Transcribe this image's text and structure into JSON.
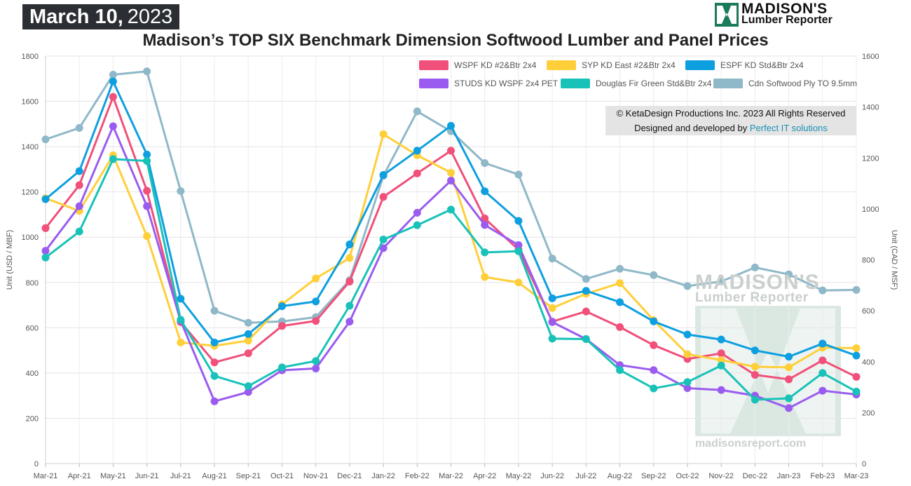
{
  "header": {
    "date_bold": "March 10,",
    "date_year": "2023",
    "brand_line1": "MADISON'S",
    "brand_line2": "Lumber Reporter",
    "title": "Madison’s TOP SIX Benchmark Dimension Softwood Lumber and Panel Prices"
  },
  "copyright": {
    "line1": "© KetaDesign Productions Inc. 2023 All Rights Reserved",
    "line2_prefix": "Designed and developed by",
    "line2_link": "Perfect IT solutions"
  },
  "watermark": {
    "line1": "MADISON'S",
    "line2": "Lumber Reporter",
    "site": "madisonsreport.com"
  },
  "chart_data": {
    "type": "line",
    "categories": [
      "Mar-21",
      "Apr-21",
      "May-21",
      "Jun-21",
      "Jul-21",
      "Aug-21",
      "Sep-21",
      "Oct-21",
      "Nov-21",
      "Dec-21",
      "Jan-22",
      "Feb-22",
      "Mar-22",
      "Apr-22",
      "May-22",
      "Jun-22",
      "Jul-22",
      "Aug-22",
      "Sep-22",
      "Oct-22",
      "Nov-22",
      "Dec-22",
      "Jan-23",
      "Feb-23",
      "Mar-23"
    ],
    "ylabel": "Unit (USD / MBF)",
    "ylabel_right": "Unit (CAD / MSF)",
    "ylim": [
      0,
      1800
    ],
    "yticks": [
      0,
      200,
      400,
      600,
      800,
      1000,
      1200,
      1400,
      1600,
      1800
    ],
    "ylim_right": [
      0,
      1600
    ],
    "yticks_right": [
      0,
      200,
      400,
      600,
      800,
      1000,
      1200,
      1400,
      1600
    ],
    "grid": true,
    "legend_position": "top-right",
    "series": [
      {
        "name": "WSPF KD #2&Btr 2x4",
        "color": "#f0507a",
        "axis": "left",
        "markers": true,
        "values": [
          1040,
          1230,
          1620,
          1205,
          625,
          447,
          487,
          608,
          630,
          804,
          1178,
          1282,
          1382,
          1083,
          945,
          627,
          672,
          603,
          523,
          462,
          487,
          392,
          372,
          456,
          383
        ]
      },
      {
        "name": "SYP KD East #2&Btr 2x4",
        "color": "#ffcf3a",
        "axis": "left",
        "markers": true,
        "values": [
          1172,
          1116,
          1362,
          1005,
          535,
          520,
          543,
          703,
          818,
          908,
          1455,
          1362,
          1285,
          824,
          800,
          687,
          750,
          797,
          633,
          483,
          457,
          428,
          425,
          512,
          510
        ]
      },
      {
        "name": "ESPF KD Std&Btr 2x4",
        "color": "#0e9fe0",
        "axis": "left",
        "markers": true,
        "values": [
          1168,
          1292,
          1688,
          1365,
          728,
          535,
          572,
          695,
          716,
          968,
          1275,
          1382,
          1492,
          1203,
          1072,
          730,
          763,
          713,
          628,
          570,
          548,
          500,
          472,
          530,
          477
        ]
      },
      {
        "name": "STUDS KD WSPF 2x4 PET",
        "color": "#9a5cf0",
        "axis": "left",
        "markers": true,
        "values": [
          940,
          1137,
          1490,
          1137,
          630,
          275,
          316,
          412,
          420,
          627,
          952,
          1108,
          1250,
          1054,
          965,
          625,
          550,
          435,
          413,
          333,
          325,
          300,
          245,
          322,
          305
        ]
      },
      {
        "name": "Douglas Fir Green Std&Btr 2x4",
        "color": "#18c2b8",
        "axis": "left",
        "markers": true,
        "values": [
          910,
          1025,
          1345,
          1337,
          635,
          387,
          342,
          425,
          453,
          697,
          990,
          1053,
          1122,
          933,
          938,
          552,
          550,
          413,
          332,
          360,
          433,
          282,
          288,
          400,
          318
        ]
      },
      {
        "name": "Cdn Softwood Ply TO 9.5mm",
        "color": "#8fb8c8",
        "axis": "right",
        "markers": true,
        "values": [
          1273,
          1318,
          1527,
          1540,
          1070,
          600,
          553,
          558,
          575,
          720,
          1130,
          1383,
          1305,
          1180,
          1135,
          805,
          725,
          765,
          740,
          697,
          715,
          770,
          743,
          680,
          682
        ]
      }
    ]
  }
}
